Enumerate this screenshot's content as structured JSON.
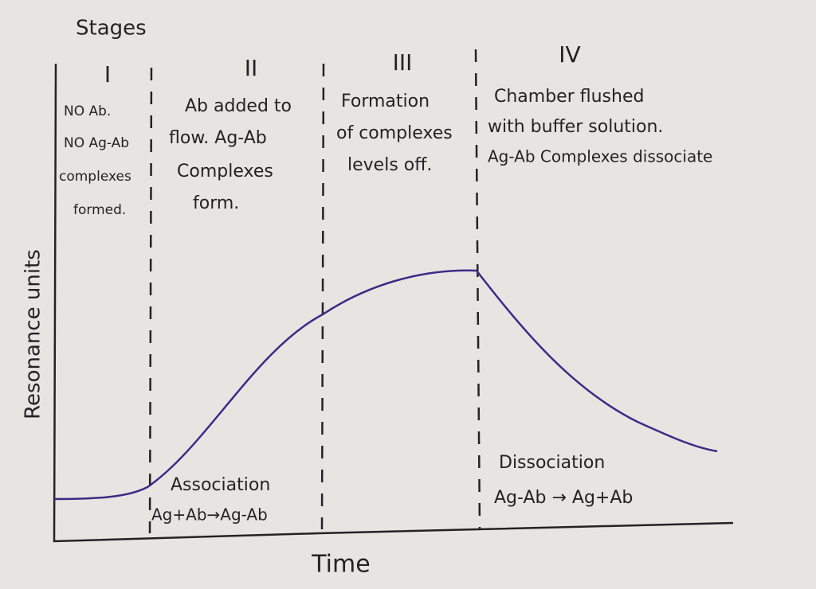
{
  "title": "Stages",
  "stages": [
    {
      "numeral": "I",
      "lines": [
        "NO Ab.",
        "NO Ag-Ab",
        "complexes",
        "formed."
      ]
    },
    {
      "numeral": "II",
      "lines": [
        "Ab added to",
        "flow. Ag-Ab",
        "Complexes",
        "form."
      ]
    },
    {
      "numeral": "III",
      "lines": [
        "Formation",
        "of complexes",
        "levels off."
      ]
    },
    {
      "numeral": "IV",
      "lines": [
        "Chamber flushed",
        "with buffer solution.",
        "Ag-Ab Complexes dissociate"
      ]
    }
  ],
  "axes": {
    "y": "Resonance units",
    "x": "Time"
  },
  "annotations": {
    "association": {
      "label": "Association",
      "equation": "Ag+Ab→Ag-Ab"
    },
    "dissociation": {
      "label": "Dissociation",
      "equation": "Ag-Ab → Ag+Ab"
    }
  }
}
